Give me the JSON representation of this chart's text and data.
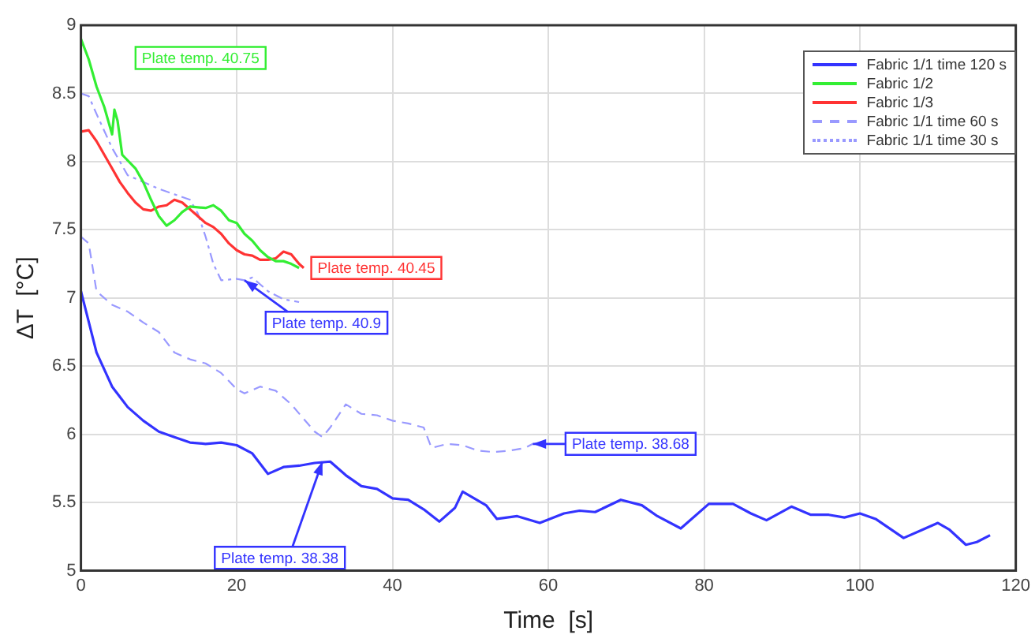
{
  "chart_data": {
    "type": "line",
    "xlabel": "Time  [s]",
    "ylabel": "ΔT  [°C]",
    "xlim": [
      0,
      120
    ],
    "xticks": [
      0,
      20,
      40,
      60,
      80,
      100,
      120
    ],
    "ylim": [
      5,
      9
    ],
    "yticks": [
      5,
      5.5,
      6,
      6.5,
      7,
      7.5,
      8,
      8.5,
      9
    ],
    "grid": true,
    "legend": "top right",
    "marker": "none",
    "series": [
      {
        "name": "Fabric 1/1 time 120 s",
        "color": "#3333ff",
        "line_style": "solid",
        "x": [
          0,
          2,
          4,
          6,
          8,
          10,
          12,
          14,
          16,
          18,
          20,
          22,
          24,
          26,
          28,
          30,
          32,
          34,
          36,
          38,
          40,
          42,
          44,
          46,
          48,
          49,
          52,
          53.4,
          56,
          58.9,
          62,
          64,
          66,
          69.3,
          72,
          74,
          77,
          80.6,
          83.7,
          86,
          88,
          91.2,
          93.7,
          96,
          98,
          100,
          102,
          105.6,
          108,
          110,
          111.5,
          113.6,
          115,
          116.7
        ],
        "values": [
          7.05,
          6.6,
          6.35,
          6.2,
          6.1,
          6.02,
          5.98,
          5.94,
          5.93,
          5.94,
          5.92,
          5.86,
          5.71,
          5.76,
          5.77,
          5.79,
          5.8,
          5.7,
          5.62,
          5.6,
          5.53,
          5.52,
          5.45,
          5.36,
          5.46,
          5.58,
          5.48,
          5.38,
          5.4,
          5.35,
          5.42,
          5.44,
          5.43,
          5.52,
          5.48,
          5.4,
          5.31,
          5.49,
          5.49,
          5.42,
          5.37,
          5.47,
          5.41,
          5.41,
          5.39,
          5.42,
          5.38,
          5.24,
          5.3,
          5.35,
          5.3,
          5.19,
          5.21,
          5.26
        ]
      },
      {
        "name": "Fabric 1/2",
        "color": "#33ee33",
        "line_style": "solid",
        "x": [
          0,
          1,
          2,
          3,
          4,
          4.3,
          4.7,
          5.3,
          7,
          8,
          9,
          10,
          11,
          12,
          13,
          14,
          16,
          17,
          18,
          19,
          20,
          21,
          22,
          23,
          24,
          25,
          26,
          27,
          28
        ],
        "values": [
          8.9,
          8.75,
          8.55,
          8.4,
          8.2,
          8.38,
          8.3,
          8.05,
          7.95,
          7.85,
          7.72,
          7.6,
          7.53,
          7.57,
          7.63,
          7.67,
          7.66,
          7.68,
          7.64,
          7.57,
          7.55,
          7.47,
          7.42,
          7.35,
          7.3,
          7.27,
          7.27,
          7.25,
          7.22
        ]
      },
      {
        "name": "Fabric 1/3",
        "color": "#ff3333",
        "line_style": "solid",
        "x": [
          0,
          1,
          2,
          3,
          4,
          5,
          6,
          7,
          8,
          9,
          10,
          11,
          12,
          13,
          14,
          15,
          16,
          17,
          18,
          19,
          20,
          21,
          22,
          23,
          24,
          25,
          26,
          27,
          28,
          28.6
        ],
        "values": [
          8.22,
          8.23,
          8.15,
          8.05,
          7.95,
          7.85,
          7.77,
          7.7,
          7.65,
          7.64,
          7.67,
          7.68,
          7.72,
          7.7,
          7.65,
          7.6,
          7.55,
          7.52,
          7.47,
          7.4,
          7.35,
          7.32,
          7.31,
          7.28,
          7.28,
          7.29,
          7.34,
          7.32,
          7.25,
          7.22
        ]
      },
      {
        "name": "Fabric 1/1 time 60 s",
        "color": "#9999ff",
        "line_style": "dashed",
        "x": [
          0,
          1,
          2,
          4,
          6,
          8,
          10,
          12,
          14,
          16,
          18,
          20,
          21,
          23,
          25,
          27,
          30,
          31,
          32,
          34,
          36,
          38,
          40,
          42,
          44,
          45,
          47,
          49,
          51,
          53,
          55,
          57,
          58
        ],
        "values": [
          7.45,
          7.4,
          7.05,
          6.95,
          6.9,
          6.82,
          6.75,
          6.6,
          6.55,
          6.52,
          6.45,
          6.33,
          6.3,
          6.35,
          6.32,
          6.22,
          6.02,
          5.98,
          6.05,
          6.22,
          6.15,
          6.14,
          6.1,
          6.08,
          6.05,
          5.9,
          5.93,
          5.92,
          5.88,
          5.87,
          5.88,
          5.9,
          5.93
        ]
      },
      {
        "name": "Fabric 1/1 time 30 s",
        "color": "#9999ff",
        "line_style": "dashdot",
        "x": [
          0,
          1,
          2,
          4,
          6,
          8,
          10,
          12,
          14,
          15,
          16,
          17,
          18,
          20,
          21,
          22,
          24,
          26,
          28
        ],
        "values": [
          8.5,
          8.48,
          8.35,
          8.1,
          7.9,
          7.85,
          7.8,
          7.76,
          7.72,
          7.62,
          7.45,
          7.25,
          7.13,
          7.14,
          7.13,
          7.15,
          7.05,
          6.99,
          6.97
        ]
      }
    ],
    "annotations": [
      "Plate temp. 40.75",
      {
        "text": "Plate temp. 40.45",
        "x": 28.6,
        "y": 7.22
      },
      {
        "text": "Plate temp. 40.9",
        "x": 21,
        "y": 7.13
      },
      {
        "text": "Plate temp. 38.68",
        "x": 58,
        "y": 5.93
      },
      {
        "text": "Plate temp. 38.38",
        "x": 31,
        "y": 5.8
      }
    ]
  }
}
